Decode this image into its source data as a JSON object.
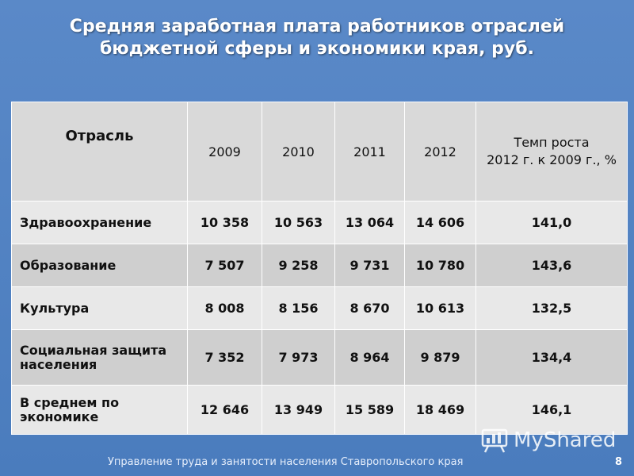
{
  "title": {
    "line1": "Средняя заработная плата работников отраслей",
    "line2": "бюджетной сферы и экономики края, руб."
  },
  "table": {
    "headers": {
      "branch": "Отрасль",
      "y2009": "2009",
      "y2010": "2010",
      "y2011": "2011",
      "y2012": "2012",
      "rate_line1": "Темп роста",
      "rate_line2": "2012 г. к 2009 г., %"
    },
    "rows": [
      {
        "name": "Здравоохранение",
        "v2009": "10 358",
        "v2010": "10 563",
        "v2011": "13 064",
        "v2012": "14 606",
        "rate": "141,0"
      },
      {
        "name": "Образование",
        "v2009": "7 507",
        "v2010": "9 258",
        "v2011": "9 731",
        "v2012": "10 780",
        "rate": "143,6"
      },
      {
        "name": "Культура",
        "v2009": "8 008",
        "v2010": "8 156",
        "v2011": "8 670",
        "v2012": "10 613",
        "rate": "132,5"
      },
      {
        "name": "Социальная защита населения",
        "v2009": "7 352",
        "v2010": "7 973",
        "v2011": "8 964",
        "v2012": "9 879",
        "rate": "134,4"
      },
      {
        "name": "В среднем по экономике",
        "v2009": "12 646",
        "v2010": "13 949",
        "v2011": "15 589",
        "v2012": "18 469",
        "rate": "146,1"
      }
    ]
  },
  "footer": {
    "org": "Управление труда и занятости населения Ставропольского края",
    "page": "8"
  },
  "watermark": {
    "text": "MyShared",
    "icon": "presentation-board-icon"
  },
  "colors": {
    "background": "#4f7fbf",
    "row_light": "#e8e8e8",
    "row_dark": "#cfcfcf",
    "header": "#d9d9d9"
  }
}
